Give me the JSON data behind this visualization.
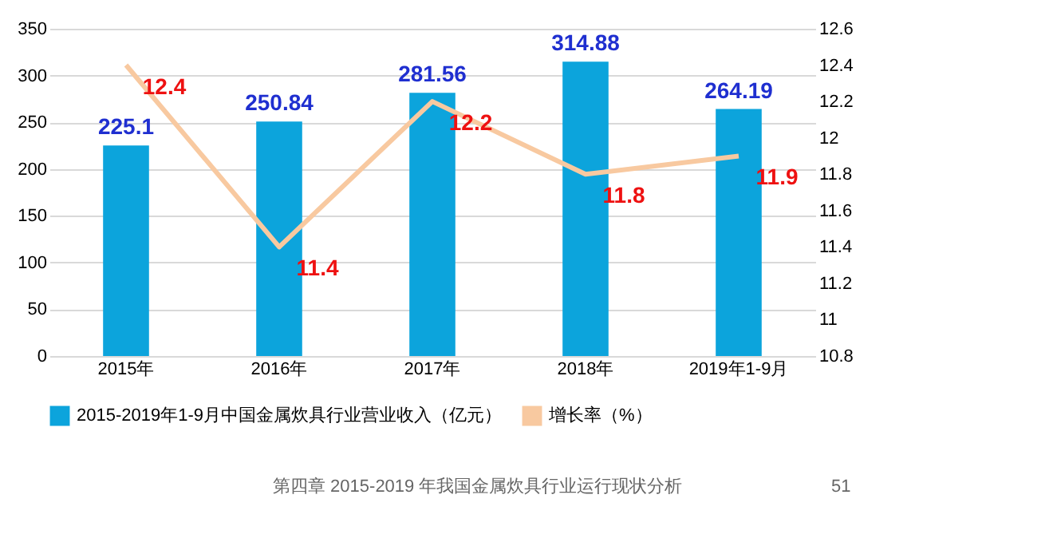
{
  "chart_data": {
    "type": "bar",
    "categories": [
      "2015年",
      "2016年",
      "2017年",
      "2018年",
      "2019年1-9月"
    ],
    "series": [
      {
        "name": "2015-2019年1-9月中国金属炊具行业营业收入（亿元）",
        "color": "#0ca4dc",
        "values": [
          225.1,
          250.84,
          281.56,
          314.88,
          264.19
        ]
      },
      {
        "name": "增长率（%）",
        "type": "line",
        "axis": "y2",
        "color": "#f8c9a0",
        "values": [
          12.4,
          11.4,
          12.2,
          11.8,
          11.9
        ]
      }
    ],
    "ylim": [
      0,
      350
    ],
    "yticks": [
      0,
      50,
      100,
      150,
      200,
      250,
      300,
      350
    ],
    "y2lim": [
      10.8,
      12.6
    ],
    "y2ticks": [
      10.8,
      11,
      11.2,
      11.4,
      11.6,
      11.8,
      12,
      12.2,
      12.4,
      12.6
    ],
    "data_labels": true,
    "grid": "y",
    "legend": "bottom",
    "marker": "none",
    "line_style": "solid",
    "annotations": [
      "第四章  2015-2019 年我国金属炊具行业运行现状分析",
      "51"
    ]
  }
}
